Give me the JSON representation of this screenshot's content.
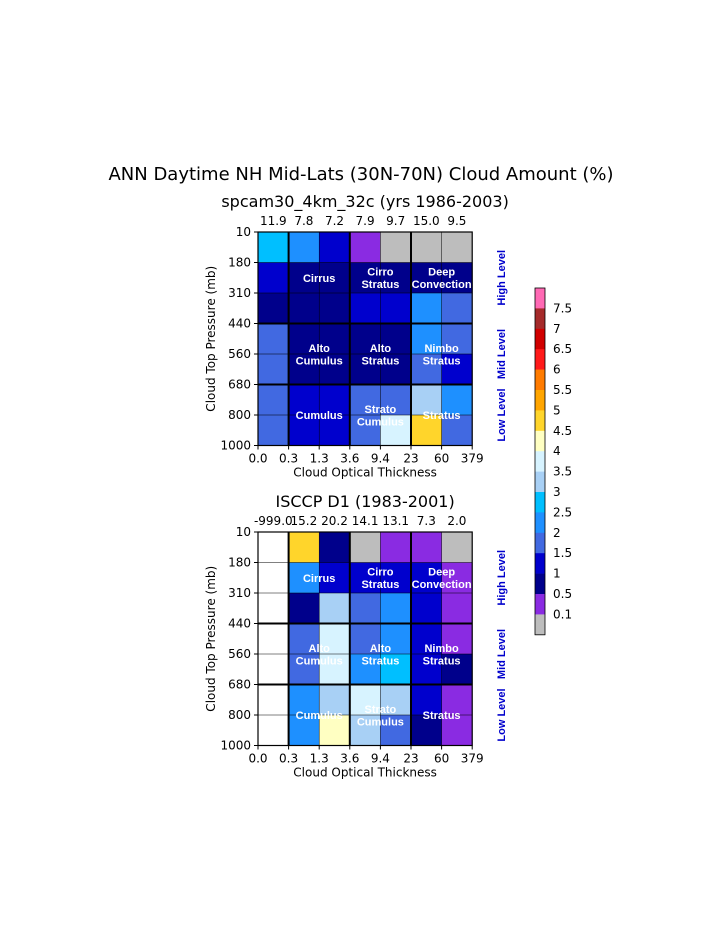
{
  "figure": {
    "title": "ANN Daytime NH Mid-Lats (30N-70N) Cloud Amount (%)"
  },
  "palette": {
    "gray": "#bdbdbd",
    "p01": "#8a2be2",
    "p05": "#00008b",
    "p1": "#0000cd",
    "p15": "#4169e1",
    "p2": "#1e90ff",
    "p25": "#00bfff",
    "p35": "#a8d0f5",
    "p4": "#d7f3ff",
    "p45": "#ffffc2",
    "p5": "#ffd52b",
    "p55": "#ffa500",
    "p6": "#ff7b00",
    "p65": "#ff1a1a",
    "p7": "#d00000",
    "p75": "#a52a2a",
    "p8": "#ff69b4",
    "white": "#ffffff",
    "label_blue": "#0000cc"
  },
  "colorbar": {
    "labels": [
      "7.5",
      "7",
      "6.5",
      "6",
      "5.5",
      "5",
      "4.5",
      "4",
      "3.5",
      "3",
      "2.5",
      "2",
      "1.5",
      "1",
      "0.5",
      "0.1"
    ],
    "colors": [
      "p8",
      "p75",
      "p7",
      "p65",
      "p6",
      "p55",
      "p5",
      "p45",
      "p4",
      "p35",
      "p25",
      "p2",
      "p15",
      "p1",
      "p05",
      "p01",
      "gray"
    ]
  },
  "level_labels": [
    "High Level",
    "Mid Level",
    "Low Level"
  ],
  "chart_data": [
    {
      "type": "heatmap",
      "title": "spcam30_4km_32c (yrs 1986-2003)",
      "xlabel": "Cloud Optical Thickness",
      "ylabel": "Cloud Top Pressure (mb)",
      "x_ticks": [
        "0.0",
        "0.3",
        "1.3",
        "3.6",
        "9.4",
        "23",
        "60",
        "379"
      ],
      "y_ticks": [
        "10",
        "180",
        "310",
        "440",
        "560",
        "680",
        "800",
        "1000"
      ],
      "column_totals": [
        "11.9",
        "7.8",
        "7.2",
        "7.9",
        "9.7",
        "15.0",
        "9.5"
      ],
      "cells": [
        [
          "p25",
          "p2",
          "p1",
          "p01",
          "gray",
          "gray",
          "gray"
        ],
        [
          "p1",
          "p05",
          "p05",
          "p05",
          "p05",
          "p05",
          "p05"
        ],
        [
          "p05",
          "p05",
          "p05",
          "p1",
          "p1",
          "p2",
          "p15"
        ],
        [
          "p15",
          "p05",
          "p05",
          "p05",
          "p05",
          "p2",
          "p15"
        ],
        [
          "p15",
          "p05",
          "p05",
          "p05",
          "p05",
          "p15",
          "p1"
        ],
        [
          "p15",
          "p1",
          "p1",
          "p15",
          "p15",
          "p35",
          "p2"
        ],
        [
          "p15",
          "p1",
          "p1",
          "p15",
          "p4",
          "p5",
          "p15"
        ]
      ],
      "cloud_labels": [
        {
          "lines": [
            "Cirrus"
          ],
          "col": 2,
          "row": 1.5
        },
        {
          "lines": [
            "Cirro",
            "Stratus"
          ],
          "col": 4,
          "row": 1.5
        },
        {
          "lines": [
            "Deep",
            "Convection"
          ],
          "col": 6,
          "row": 1.5
        },
        {
          "lines": [
            "Alto",
            "Cumulus"
          ],
          "col": 2,
          "row": 4
        },
        {
          "lines": [
            "Alto",
            "Stratus"
          ],
          "col": 4,
          "row": 4
        },
        {
          "lines": [
            "Nimbo",
            "Stratus"
          ],
          "col": 6,
          "row": 4
        },
        {
          "lines": [
            "Cumulus"
          ],
          "col": 2,
          "row": 6
        },
        {
          "lines": [
            "Strato",
            "Cumulus"
          ],
          "col": 4,
          "row": 6
        },
        {
          "lines": [
            "Stratus"
          ],
          "col": 6,
          "row": 6
        }
      ]
    },
    {
      "type": "heatmap",
      "title": "ISCCP D1 (1983-2001)",
      "xlabel": "Cloud Optical Thickness",
      "ylabel": "Cloud Top Pressure (mb)",
      "x_ticks": [
        "0.0",
        "0.3",
        "1.3",
        "3.6",
        "9.4",
        "23",
        "60",
        "379"
      ],
      "y_ticks": [
        "10",
        "180",
        "310",
        "440",
        "560",
        "680",
        "800",
        "1000"
      ],
      "column_totals": [
        "-999.0",
        "15.2",
        "20.2",
        "14.1",
        "13.1",
        "7.3",
        "2.0"
      ],
      "cells": [
        [
          "white",
          "p5",
          "p05",
          "gray",
          "p01",
          "p01",
          "gray"
        ],
        [
          "white",
          "p2",
          "p1",
          "p1",
          "p1",
          "p1",
          "p01"
        ],
        [
          "white",
          "p05",
          "p35",
          "p15",
          "p2",
          "p1",
          "p01"
        ],
        [
          "white",
          "p15",
          "p4",
          "p15",
          "p2",
          "p1",
          "p01"
        ],
        [
          "white",
          "p15",
          "p4",
          "p2",
          "p25",
          "p1",
          "p05"
        ],
        [
          "white",
          "p2",
          "p35",
          "p4",
          "p35",
          "p1",
          "p01"
        ],
        [
          "white",
          "p2",
          "p45",
          "p35",
          "p15",
          "p05",
          "p01"
        ]
      ],
      "cloud_labels": [
        {
          "lines": [
            "Cirrus"
          ],
          "col": 2,
          "row": 1.5
        },
        {
          "lines": [
            "Cirro",
            "Stratus"
          ],
          "col": 4,
          "row": 1.5
        },
        {
          "lines": [
            "Deep",
            "Convection"
          ],
          "col": 6,
          "row": 1.5
        },
        {
          "lines": [
            "Alto",
            "Cumulus"
          ],
          "col": 2,
          "row": 4
        },
        {
          "lines": [
            "Alto",
            "Stratus"
          ],
          "col": 4,
          "row": 4
        },
        {
          "lines": [
            "Nimbo",
            "Stratus"
          ],
          "col": 6,
          "row": 4
        },
        {
          "lines": [
            "Cumulus"
          ],
          "col": 2,
          "row": 6
        },
        {
          "lines": [
            "Strato",
            "Cumulus"
          ],
          "col": 4,
          "row": 6
        },
        {
          "lines": [
            "Stratus"
          ],
          "col": 6,
          "row": 6
        }
      ]
    }
  ]
}
